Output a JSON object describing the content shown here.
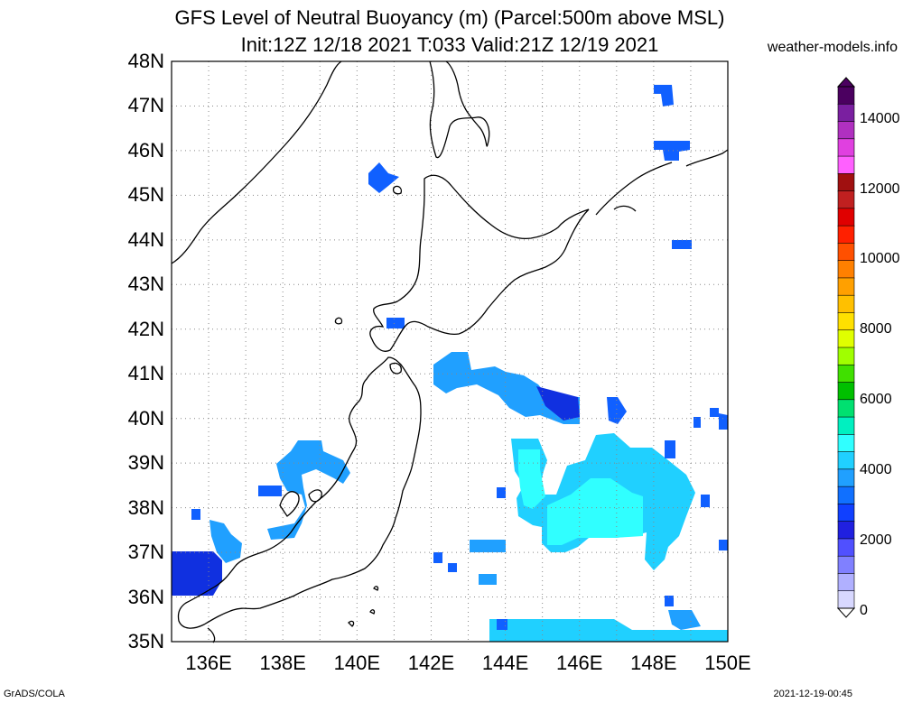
{
  "title_line1": "GFS Level of Neutral Buoyancy (m) (Parcel:500m above MSL)",
  "title_line2": "Init:12Z 12/18 2021 T:033 Valid:21Z 12/19 2021",
  "site": "weather-models.info",
  "lat_labels": [
    "48N",
    "47N",
    "46N",
    "45N",
    "44N",
    "43N",
    "42N",
    "41N",
    "40N",
    "39N",
    "38N",
    "37N",
    "36N",
    "35N"
  ],
  "lon_labels": [
    "136E",
    "138E",
    "140E",
    "142E",
    "144E",
    "146E",
    "148E",
    "150E"
  ],
  "colorbar": {
    "labels": [
      "14000",
      "12000",
      "10000",
      "8000",
      "6000",
      "4000",
      "2000",
      "0"
    ],
    "colors": [
      "#4b0060",
      "#7a1fa0",
      "#b030c0",
      "#e040e0",
      "#ff60ff",
      "#a01010",
      "#c02020",
      "#e00000",
      "#ff2000",
      "#ff5000",
      "#ff8000",
      "#ffa000",
      "#ffc000",
      "#ffe000",
      "#e0ff00",
      "#a0ff00",
      "#40e000",
      "#00c000",
      "#00e070",
      "#00f0c0",
      "#30ffff",
      "#20d0ff",
      "#20a0ff",
      "#1070ff",
      "#1040ff",
      "#2020e0",
      "#5050ff",
      "#8080ff",
      "#b0b0ff",
      "#d8d8ff"
    ]
  },
  "fill_colors": {
    "cyan": "#30ffff",
    "lightblue": "#20d0ff",
    "mid": "#20a0ff",
    "blue": "#1060ff",
    "deep": "#1030e0"
  },
  "footer_left": "GrADS/COLA",
  "footer_right": "2021-12-19-00:45"
}
